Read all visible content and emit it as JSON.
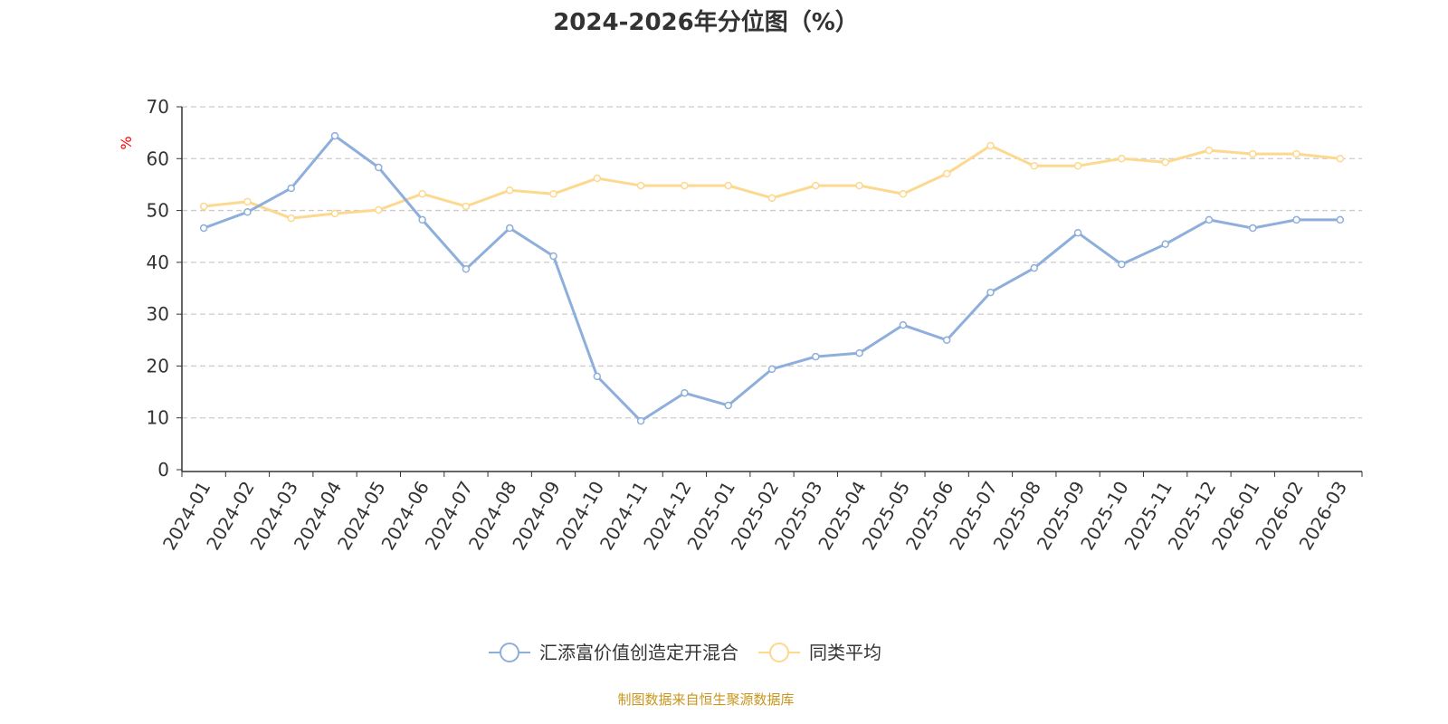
{
  "chart_data": {
    "type": "line",
    "title": "2024-2026年分位图（%）",
    "ylabel": "%",
    "xlabel": "",
    "ylim": [
      0,
      70
    ],
    "yticks": [
      0,
      10,
      20,
      30,
      40,
      50,
      60,
      70
    ],
    "grid": true,
    "legend_placement": "bottom",
    "categories": [
      "2024-01",
      "2024-02",
      "2024-03",
      "2024-04",
      "2024-05",
      "2024-06",
      "2024-07",
      "2024-08",
      "2024-09",
      "2024-10",
      "2024-11",
      "2024-12",
      "2025-01",
      "2025-02",
      "2025-03",
      "2025-04",
      "2025-05",
      "2025-06",
      "2025-07",
      "2025-08",
      "2025-09",
      "2025-10",
      "2025-11",
      "2025-12",
      "2026-01",
      "2026-02",
      "2026-03"
    ],
    "series": [
      {
        "name": "汇添富价值创造定开混合",
        "color": "#8eaedb",
        "values": [
          46.6,
          49.7,
          54.3,
          64.4,
          58.3,
          48.2,
          38.7,
          46.6,
          41.2,
          18.0,
          9.4,
          14.8,
          12.4,
          19.4,
          21.8,
          22.5,
          27.9,
          25.0,
          34.2,
          38.9,
          45.7,
          39.6,
          43.5,
          48.2,
          46.6,
          48.2,
          48.2
        ]
      },
      {
        "name": "同类平均",
        "color": "#fdd88f",
        "values": [
          50.8,
          51.7,
          48.5,
          49.4,
          50.1,
          53.2,
          50.8,
          53.9,
          53.2,
          56.2,
          54.8,
          54.8,
          54.8,
          52.4,
          54.8,
          54.8,
          53.2,
          57.1,
          62.5,
          58.6,
          58.6,
          60.0,
          59.3,
          61.6,
          60.9,
          60.9,
          60.0
        ]
      }
    ]
  },
  "footer": {
    "source": "制图数据来自恒生聚源数据库"
  }
}
